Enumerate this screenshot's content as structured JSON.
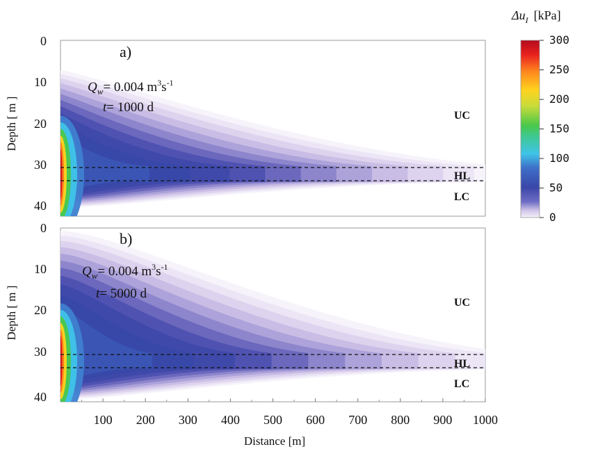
{
  "chart_data": [
    {
      "panel": "a)",
      "type": "heatmap",
      "xlabel": "",
      "ylabel": "Depth [ m ]",
      "xlim": [
        0,
        1000
      ],
      "ylim": [
        40,
        0
      ],
      "yticks": [
        "0",
        "10",
        "20",
        "30",
        "40"
      ],
      "annotation": {
        "q_label": "Q",
        "q_sub": "w",
        "q_value": "= 0.004 m",
        "q_unit_exp": "3",
        "q_unit_s": "s",
        "q_unit_exp2": "-1",
        "t_label": "t",
        "t_value": "= 1000 d"
      },
      "layers": [
        "UC",
        "HL",
        "LC"
      ],
      "hl_bounds": [
        30,
        33
      ],
      "max_kpa": 300,
      "reach_m": 1000
    },
    {
      "panel": "b)",
      "type": "heatmap",
      "xlabel": "Distance [m]",
      "ylabel": "Depth [ m ]",
      "xlim": [
        0,
        1000
      ],
      "ylim": [
        40,
        0
      ],
      "yticks": [
        "0",
        "10",
        "20",
        "30",
        "40"
      ],
      "xticks": [
        "100",
        "200",
        "300",
        "400",
        "500",
        "600",
        "700",
        "800",
        "900",
        "1000"
      ],
      "annotation": {
        "q_label": "Q",
        "q_sub": "w",
        "q_value": "= 0.004 m",
        "q_unit_exp": "3",
        "q_unit_s": "s",
        "q_unit_exp2": "-1",
        "t_label": "t",
        "t_value": "= 5000 d"
      },
      "layers": [
        "UC",
        "HL",
        "LC"
      ],
      "hl_bounds": [
        30,
        33
      ],
      "max_kpa": 300,
      "reach_m": 1000
    }
  ],
  "colorbar": {
    "title_symbol": "Δu",
    "title_sub": "I",
    "title_unit": "[kPa]",
    "ticks": [
      "300",
      "250",
      "200",
      "150",
      "100",
      "50",
      "0"
    ],
    "range": [
      0,
      300
    ],
    "colors": [
      "#f4f0fa",
      "#d2c6e8",
      "#8f86cc",
      "#4a4db3",
      "#3a4aa8",
      "#3f7fd0",
      "#3fc8e8",
      "#4ac85a",
      "#b0d84a",
      "#ffd21e",
      "#ff8a1e",
      "#e8201e",
      "#c0101e"
    ]
  }
}
